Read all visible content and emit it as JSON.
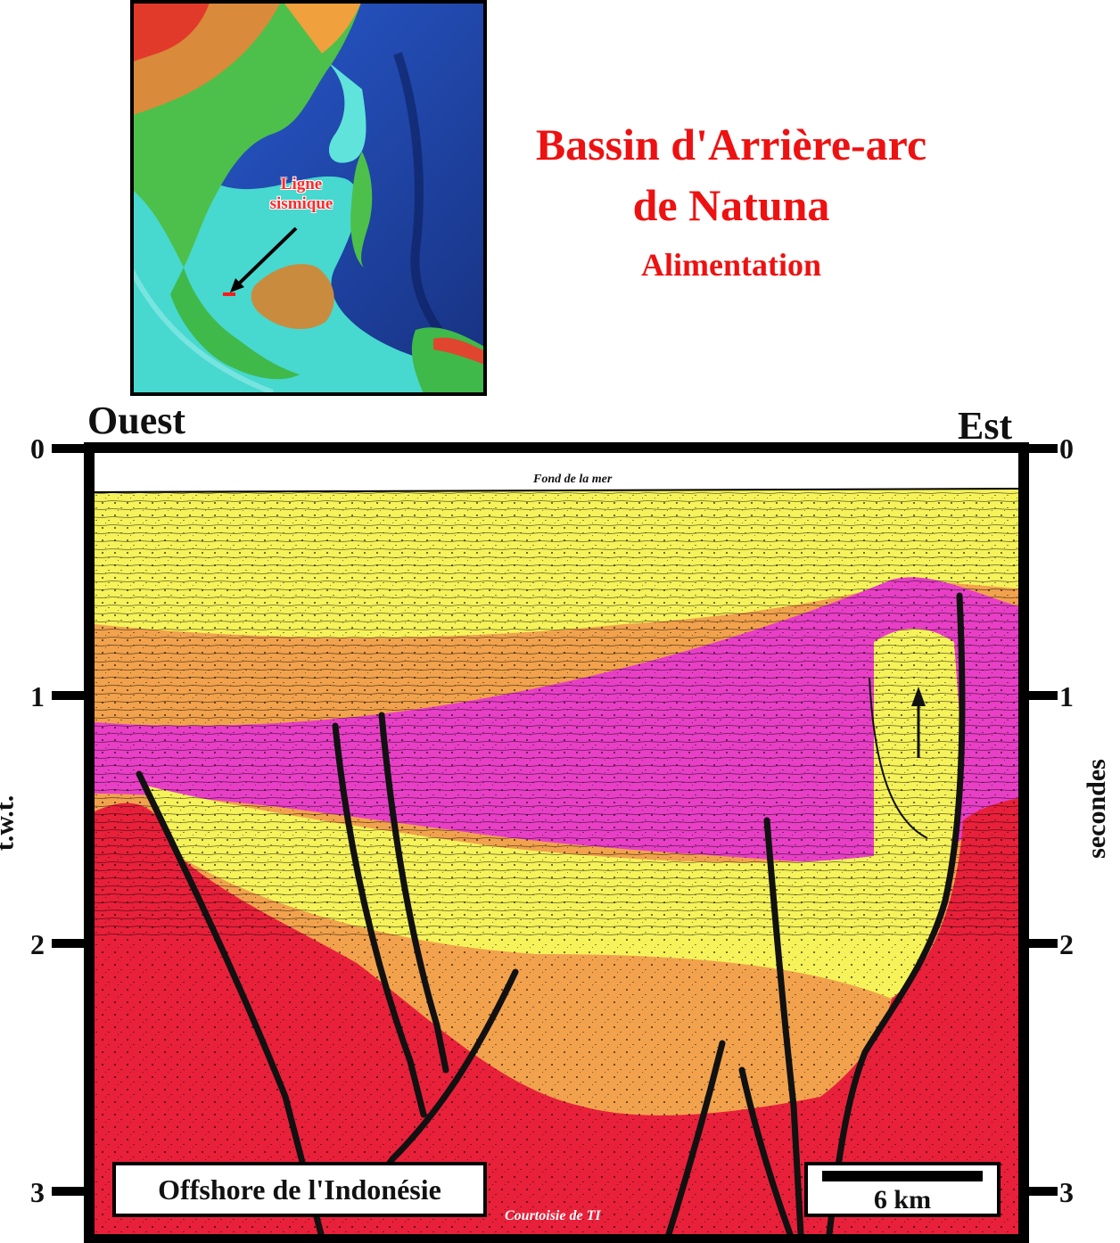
{
  "title": {
    "line1": "Bassin d'Arrière-arc",
    "line2": "de Natuna",
    "subtitle": "Alimentation"
  },
  "map": {
    "label_line1": "Ligne",
    "label_line2": "sismique"
  },
  "section": {
    "west_label": "Ouest",
    "east_label": "Est",
    "left_axis_title": "t.w.t.",
    "right_axis_title": "secondes",
    "ticks": [
      "0",
      "1",
      "2",
      "3"
    ],
    "seafloor_label": "Fond de la mer",
    "region_label": "Offshore de l'Indonésie",
    "scale_label": "6 km",
    "credit": "Courtoisie de TI"
  },
  "colors": {
    "title": "#ee1111",
    "basement": "#e8203a",
    "orange_unit": "#f2a24c",
    "magenta_unit": "#e83fc6",
    "yellow_unit": "#f5f25a",
    "frame": "#000000"
  }
}
